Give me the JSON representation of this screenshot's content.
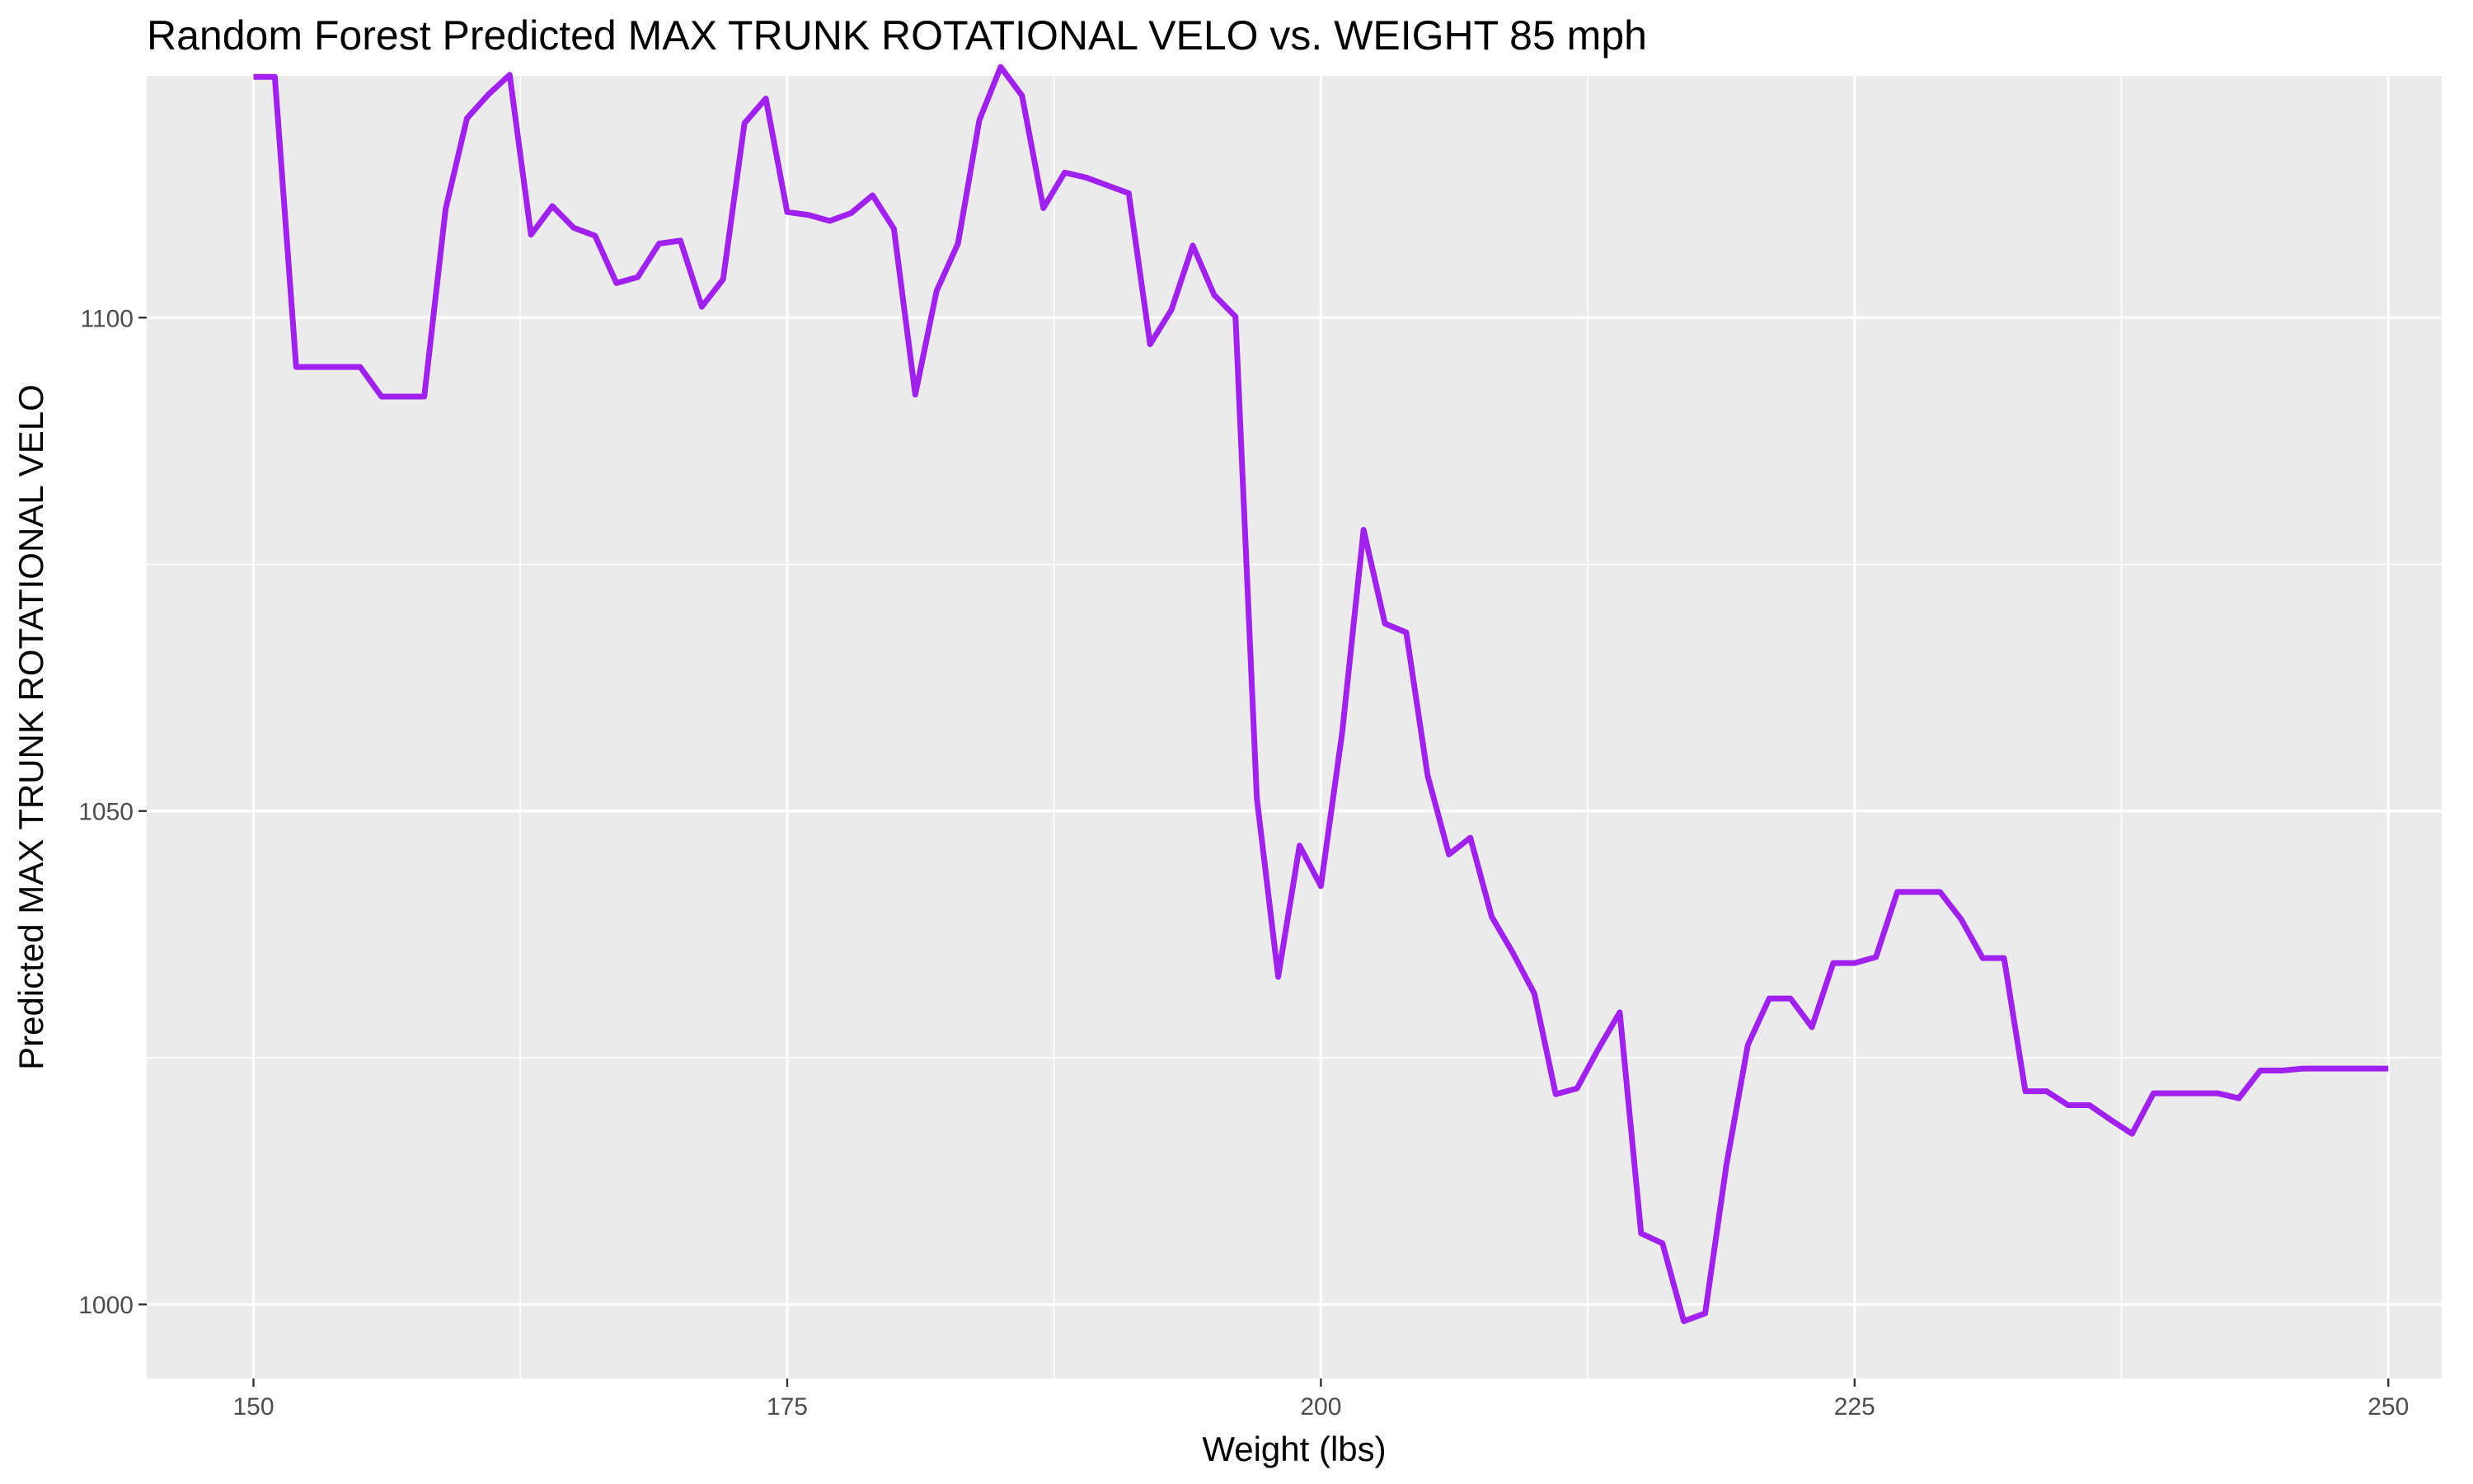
{
  "chart_data": {
    "type": "line",
    "title": "Random Forest Predicted MAX TRUNK ROTATIONAL VELO vs. WEIGHT 85 mph",
    "xlabel": "Weight (lbs)",
    "ylabel": "Predicted MAX TRUNK ROTATIONAL VELO",
    "xlim": [
      145,
      252.5
    ],
    "ylim": [
      992.5,
      1124.5
    ],
    "x_ticks": [
      150,
      175,
      200,
      225,
      250
    ],
    "x_tick_labels": [
      "150",
      "175",
      "200",
      "225",
      "250"
    ],
    "y_ticks": [
      1000,
      1050,
      1100
    ],
    "y_tick_labels": [
      "1000",
      "1050",
      "1100"
    ],
    "grid": true,
    "legend": "none",
    "series": [
      {
        "color": "#a020f0",
        "x": [
          150,
          151,
          152,
          153,
          154,
          155,
          156,
          157,
          158,
          159,
          160,
          161,
          162,
          163,
          164,
          165,
          166,
          167,
          168,
          169,
          170,
          171,
          172,
          173,
          174,
          175,
          176,
          177,
          178,
          179,
          180,
          181,
          182,
          183,
          184,
          185,
          186,
          187,
          188,
          189,
          190,
          191,
          192,
          193,
          194,
          195,
          196,
          197,
          198,
          199,
          200,
          201,
          202,
          203,
          204,
          205,
          206,
          207,
          208,
          209,
          210,
          211,
          212,
          213,
          214,
          215,
          216,
          217,
          218,
          219,
          220,
          221,
          222,
          223,
          224,
          225,
          226,
          227,
          228,
          229,
          230,
          231,
          232,
          233,
          234,
          235,
          236,
          237,
          238,
          239,
          240,
          241,
          242,
          243,
          244,
          245,
          246,
          247,
          248,
          249,
          250
        ],
        "y": [
          1124.4,
          1124.4,
          1095,
          1095,
          1095,
          1095,
          1092,
          1092,
          1092,
          1111,
          1120.2,
          1122.6,
          1124.6,
          1108.4,
          1111.3,
          1109.1,
          1108.3,
          1103.5,
          1104.1,
          1107.5,
          1107.8,
          1101.1,
          1103.9,
          1119.7,
          1122.2,
          1110.7,
          1110.4,
          1109.8,
          1110.6,
          1112.4,
          1109,
          1092.2,
          1102.7,
          1107.5,
          1120,
          1125.4,
          1122.5,
          1111.1,
          1114.7,
          1114.2,
          1113.4,
          1112.6,
          1097.3,
          1100.8,
          1107.3,
          1102.3,
          1100.1,
          1051.3,
          1033.2,
          1046.5,
          1042.4,
          1058,
          1078.5,
          1069,
          1068.1,
          1053.6,
          1045.6,
          1047.3,
          1039.3,
          1035.6,
          1031.5,
          1021.3,
          1021.9,
          1025.9,
          1029.6,
          1007.2,
          1006.2,
          998.3,
          999.1,
          1014.2,
          1026.3,
          1031,
          1031,
          1028.1,
          1034.6,
          1034.6,
          1035.2,
          1041.8,
          1041.8,
          1041.8,
          1039,
          1035.1,
          1035.1,
          1021.6,
          1021.6,
          1020.2,
          1020.2,
          1018.7,
          1017.3,
          1021.4,
          1021.4,
          1021.4,
          1021.4,
          1020.9,
          1023.7,
          1023.7,
          1023.9,
          1023.9,
          1023.9,
          1023.9,
          1023.9
        ]
      }
    ]
  }
}
